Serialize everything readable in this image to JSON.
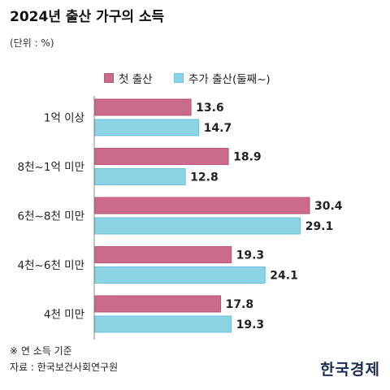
{
  "title": "2024년 출산 가구의 소득",
  "unit": "(단위 : %)",
  "note": "※ 연 소득 기준",
  "source": "자료 : 한국보건사회연구원",
  "logo": "한국경제",
  "colors": {
    "first_birth": "#cb6a8b",
    "additional_birth": "#8dd3e6"
  },
  "chart_data": {
    "type": "bar",
    "orientation": "horizontal",
    "title": "2024년 출산 가구의 소득",
    "unit": "(단위 : %)",
    "categories": [
      "1억 이상",
      "8천~1억 미만",
      "6천~8천 미만",
      "4천~6천 미만",
      "4천 미만"
    ],
    "series": [
      {
        "name": "첫 출산",
        "values": [
          13.6,
          18.9,
          30.4,
          19.3,
          17.8
        ]
      },
      {
        "name": "추가 출산(둘째~)",
        "values": [
          14.7,
          12.8,
          29.1,
          24.1,
          19.3
        ]
      }
    ],
    "xlim": [
      0,
      30.4
    ],
    "grid": false,
    "legend": "top-center"
  }
}
